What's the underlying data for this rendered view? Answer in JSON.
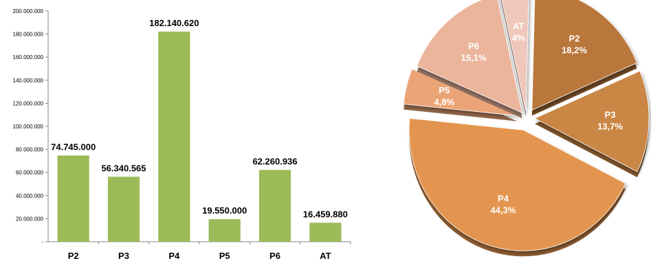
{
  "chart_data": [
    {
      "type": "bar",
      "categories": [
        "P2",
        "P3",
        "P4",
        "P5",
        "P6",
        "AT"
      ],
      "values": [
        74745000,
        56340565,
        182140620,
        19550000,
        62260936,
        16459880
      ],
      "data_labels": [
        "74.745.000",
        "56.340.565",
        "182.140.620",
        "19.550.000",
        "62.260.936",
        "16.459.880"
      ],
      "ylim": [
        0,
        200000000
      ],
      "yticks": [
        0,
        20000000,
        40000000,
        60000000,
        80000000,
        100000000,
        120000000,
        140000000,
        160000000,
        180000000,
        200000000
      ],
      "ytick_labels": [
        "-",
        "20.000.000",
        "40.000.000",
        "60.000.000",
        "80.000.000",
        "100.000.000",
        "120.000.000",
        "140.000.000",
        "160.000.000",
        "180.000.000",
        "200.000.000"
      ],
      "grid": false,
      "legend": "none",
      "bar_color": "#9bbb59"
    },
    {
      "type": "pie",
      "exploded": true,
      "style": "3d",
      "slices": [
        {
          "label": "P2",
          "percent_label": "18,2%",
          "value": 18.2,
          "color": "#b9773a"
        },
        {
          "label": "P3",
          "percent_label": "13,7%",
          "value": 13.7,
          "color": "#c98644"
        },
        {
          "label": "P4",
          "percent_label": "44,3%",
          "value": 44.3,
          "color": "#e3954f"
        },
        {
          "label": "P5",
          "percent_label": "4,8%",
          "value": 4.8,
          "color": "#eba476"
        },
        {
          "label": "P6",
          "percent_label": "15,1%",
          "value": 15.1,
          "color": "#ebb59c"
        },
        {
          "label": "AT",
          "percent_label": "4%",
          "value": 4.0,
          "color": "#f0c8bb"
        }
      ],
      "legend": "none"
    }
  ]
}
